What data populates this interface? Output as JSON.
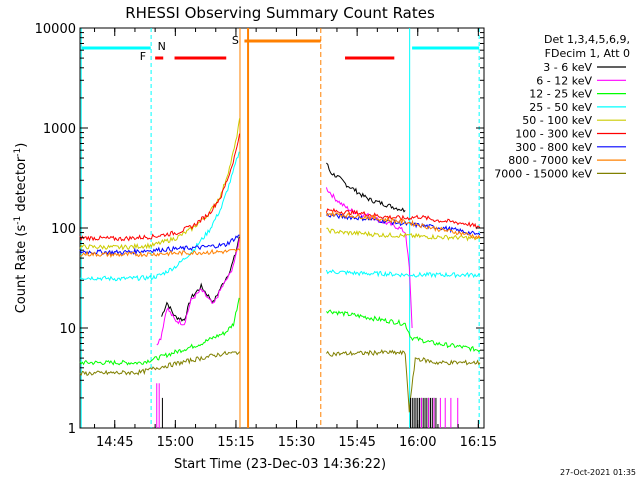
{
  "chart_data": {
    "type": "line",
    "title": "RHESSI Observing Summary Count Rates",
    "xlabel": "Start Time (23-Dec-03 14:36:22)",
    "ylabel_main": "Count Rate (s",
    "ylabel_sup1": "-1",
    "ylabel_mid": " detector",
    "ylabel_sup2": "-1",
    "ylabel_end": ")",
    "x_range_min": [
      0,
      100
    ],
    "y_log_range": [
      1,
      10000
    ],
    "x_ticks": [
      {
        "label": "14:45",
        "min": 8.6
      },
      {
        "label": "15:00",
        "min": 23.6
      },
      {
        "label": "15:15",
        "min": 38.6
      },
      {
        "label": "15:30",
        "min": 53.6
      },
      {
        "label": "15:45",
        "min": 68.6
      },
      {
        "label": "16:00",
        "min": 83.6
      },
      {
        "label": "16:15",
        "min": 98.6
      }
    ],
    "y_ticks": [
      {
        "label": "1",
        "value": 1
      },
      {
        "label": "10",
        "value": 10
      },
      {
        "label": "100",
        "value": 100
      },
      {
        "label": "1000",
        "value": 1000
      },
      {
        "label": "10000",
        "value": 10000
      }
    ],
    "legend": {
      "header1": "Det 1,3,4,5,6,9,",
      "header2": "FDecim 1, Att 0",
      "entries": [
        {
          "label": "3 - 6 keV",
          "color": "#000000"
        },
        {
          "label": "6 - 12 keV",
          "color": "#ff00ff"
        },
        {
          "label": "12 - 25 keV",
          "color": "#00ff00"
        },
        {
          "label": "25 - 50 keV",
          "color": "#00ffff"
        },
        {
          "label": "50 - 100 keV",
          "color": "#cccc00"
        },
        {
          "label": "100 - 300 keV",
          "color": "#ff0000"
        },
        {
          "label": "300 - 800 keV",
          "color": "#0000ff"
        },
        {
          "label": "800 - 7000 keV",
          "color": "#ff8000"
        },
        {
          "label": "7000 - 15000 keV",
          "color": "#808000"
        }
      ]
    },
    "flags": [
      {
        "label": "N",
        "color": "#00ffff"
      },
      {
        "label": "F",
        "color": "#ff0000"
      },
      {
        "label": "S",
        "color": "#ff8000"
      }
    ],
    "segments": [
      {
        "name": "pre",
        "start": 0,
        "end": 39.6
      },
      {
        "name": "post",
        "start": 60.9,
        "end": 99.2
      }
    ],
    "series": [
      {
        "name": "3 - 6 keV",
        "color": "#000000",
        "segments": [
          {
            "t": [
              20.2,
              21.5,
              23.5,
              25.8,
              27.5,
              30,
              33,
              35,
              37.2,
              38.5,
              39.4
            ],
            "v": [
              13,
              18,
              13,
              12,
              20,
              26,
              18,
              26,
              38,
              55,
              82
            ]
          },
          {
            "t": [
              61,
              62,
              64,
              66,
              68,
              70,
              72,
              75,
              78,
              80.5
            ],
            "v": [
              450,
              360,
              320,
              270,
              240,
              210,
              190,
              175,
              160,
              150
            ]
          }
        ]
      },
      {
        "name": "6 - 12 keV",
        "color": "#ff00ff",
        "segments": [
          {
            "t": [
              19,
              20,
              21.5,
              23.5,
              25.8,
              27.5,
              30,
              33,
              35,
              37.2,
              38.5,
              39.4
            ],
            "v": [
              7,
              8,
              16,
              12,
              11,
              19,
              24,
              17,
              25,
              35,
              50,
              78
            ]
          },
          {
            "t": [
              61,
              63,
              65,
              67,
              69,
              71,
              73,
              75,
              77,
              79,
              80.6,
              81.5,
              82.2
            ],
            "v": [
              250,
              200,
              170,
              150,
              140,
              135,
              125,
              115,
              108,
              100,
              90,
              40,
              10
            ]
          }
        ]
      },
      {
        "name": "12 - 25 keV",
        "color": "#00ff00",
        "segments": [
          {
            "t": [
              0,
              15,
              19.2,
              25,
              30,
              33,
              36,
              38,
              39.4
            ],
            "v": [
              4.5,
              4.5,
              5,
              6,
              7,
              8,
              9,
              11,
              20
            ]
          },
          {
            "t": [
              61,
              65,
              70,
              75,
              78,
              80.5,
              82,
              88,
              94,
              99
            ],
            "v": [
              15,
              14,
              13,
              12,
              11.5,
              11,
              8,
              7,
              6.5,
              6
            ]
          }
        ]
      },
      {
        "name": "25 - 50 keV",
        "color": "#00ffff",
        "segments": [
          {
            "t": [
              0,
              10,
              18,
              20,
              24,
              28,
              32,
              35,
              37.5,
              39.4
            ],
            "v": [
              32,
              31,
              32,
              34,
              42,
              60,
              95,
              160,
              320,
              580
            ]
          },
          {
            "t": [
              61,
              65,
              70,
              75,
              80.5,
              85,
              90,
              95,
              99
            ],
            "v": [
              37,
              36,
              35,
              35,
              34,
              34,
              34,
              34,
              34
            ]
          }
        ]
      },
      {
        "name": "50 - 100 keV",
        "color": "#cccc00",
        "segments": [
          {
            "t": [
              0,
              10,
              18,
              24,
              28,
              32,
              35,
              37,
              38.5,
              39.5
            ],
            "v": [
              65,
              64,
              67,
              80,
              100,
              140,
              220,
              400,
              700,
              1250
            ]
          },
          {
            "t": [
              61,
              65,
              70,
              75,
              80.5,
              85,
              90,
              95,
              99
            ],
            "v": [
              95,
              90,
              88,
              85,
              84,
              82,
              81,
              80,
              78
            ]
          }
        ]
      },
      {
        "name": "100 - 300 keV",
        "color": "#ff0000",
        "segments": [
          {
            "t": [
              0,
              10,
              18,
              24,
              28,
              32,
              35,
              37,
              38.5,
              39.5
            ],
            "v": [
              80,
              78,
              82,
              90,
              105,
              140,
              210,
              350,
              560,
              880
            ]
          },
          {
            "t": [
              61,
              65,
              70,
              75,
              80.5,
              84,
              88,
              92,
              96,
              99
            ],
            "v": [
              150,
              145,
              140,
              130,
              125,
              130,
              120,
              115,
              110,
              100
            ]
          }
        ]
      },
      {
        "name": "300 - 800 keV",
        "color": "#0000ff",
        "segments": [
          {
            "t": [
              0,
              10,
              18,
              24,
              30,
              36,
              39.5
            ],
            "v": [
              58,
              57,
              60,
              62,
              64,
              68,
              85
            ]
          },
          {
            "t": [
              61,
              65,
              70,
              75,
              80.5,
              85,
              90,
              95,
              99
            ],
            "v": [
              135,
              130,
              125,
              118,
              110,
              105,
              100,
              92,
              85
            ]
          }
        ]
      },
      {
        "name": "800 - 7000 keV",
        "color": "#ff8000",
        "segments": [
          {
            "t": [
              0,
              10,
              18,
              24,
              30,
              36,
              39.5
            ],
            "v": [
              55,
              54,
              55,
              56,
              57,
              58,
              60
            ]
          },
          {
            "t": [
              61,
              65,
              70,
              75,
              80.5,
              85,
              90,
              95,
              99
            ],
            "v": [
              140,
              135,
              130,
              122,
              115,
              105,
              95,
              88,
              80
            ]
          }
        ]
      },
      {
        "name": "7000 - 15000 keV",
        "color": "#808000",
        "segments": [
          {
            "t": [
              0,
              15,
              19,
              25,
              30,
              35,
              38,
              39.5
            ],
            "v": [
              3.5,
              3.6,
              4,
              4.5,
              5,
              5.5,
              5.6,
              5.8
            ]
          },
          {
            "t": [
              61,
              70,
              75,
              80.5,
              81.5,
              83,
              88,
              94,
              99
            ],
            "v": [
              5.5,
              5.6,
              5.7,
              5.6,
              1.5,
              5,
              4.5,
              4.5,
              4.5
            ]
          }
        ]
      }
    ],
    "timestamp": "27-Oct-2021 01:35"
  }
}
